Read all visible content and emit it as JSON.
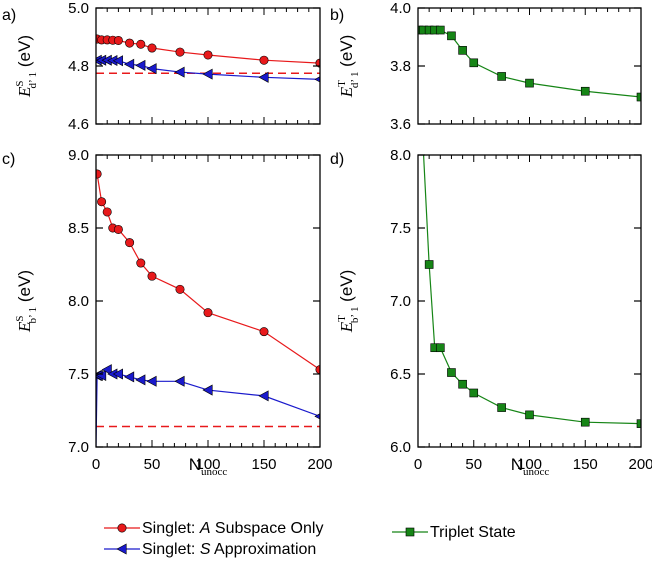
{
  "xlabel": {
    "main": "N",
    "sub": "unocc"
  },
  "legend": [
    {
      "prefix": "Singlet: ",
      "emph": "A",
      "suffix": " Subspace Only",
      "color": "#e8191b",
      "marker": "circle"
    },
    {
      "prefix": "Singlet: ",
      "emph": "S",
      "suffix": " Approximation",
      "color": "#1a1acc",
      "marker": "triangle"
    },
    {
      "prefix": "",
      "emph": "",
      "suffix": "Triplet State",
      "color": "#168516",
      "marker": "square"
    }
  ],
  "colors": {
    "red": "#e8191b",
    "blue": "#1a1acc",
    "green": "#168516",
    "dashed_red": "#e8191b"
  },
  "chart_data": [
    {
      "type": "line",
      "panel": "a)",
      "ylabel": {
        "prefix": "E",
        "sup": "S",
        "sub": "d’ 1",
        "unit": " (eV)"
      },
      "xlim": [
        0,
        200
      ],
      "ylim": [
        4.6,
        5.0
      ],
      "xticks": [],
      "yticks": [
        4.6,
        4.8,
        5.0
      ],
      "ytick_labels": [
        "4.6",
        "4.8",
        "5.0"
      ],
      "series": [
        {
          "color": "#e8191b",
          "marker": "circle",
          "x": [
            1,
            5,
            10,
            15,
            20,
            30,
            40,
            50,
            75,
            100,
            150,
            200
          ],
          "y": [
            4.893,
            4.89,
            4.89,
            4.889,
            4.888,
            4.879,
            4.875,
            4.862,
            4.848,
            4.838,
            4.82,
            4.81
          ]
        },
        {
          "color": "#1a1acc",
          "marker": "triangle",
          "x": [
            1,
            5,
            10,
            15,
            20,
            30,
            40,
            50,
            75,
            100,
            150,
            200
          ],
          "y": [
            4.82,
            4.82,
            4.82,
            4.819,
            4.818,
            4.806,
            4.802,
            4.791,
            4.779,
            4.772,
            4.761,
            4.754
          ]
        }
      ],
      "reference_lines": [
        {
          "y": 4.775,
          "color": "#e8191b",
          "style": "dashed"
        }
      ]
    },
    {
      "type": "line",
      "panel": "b)",
      "ylabel": {
        "prefix": "E",
        "sup": "T",
        "sub": "d’ 1",
        "unit": " (eV)"
      },
      "xlim": [
        0,
        200
      ],
      "ylim": [
        3.6,
        4.0
      ],
      "xticks": [],
      "yticks": [
        3.6,
        3.8,
        4.0
      ],
      "ytick_labels": [
        "3.6",
        "3.8",
        "4.0"
      ],
      "series": [
        {
          "color": "#168516",
          "marker": "square",
          "x": [
            1,
            5,
            10,
            15,
            20,
            30,
            40,
            50,
            75,
            100,
            150,
            200
          ],
          "y": [
            3.924,
            3.924,
            3.924,
            3.924,
            3.924,
            3.904,
            3.854,
            3.811,
            3.764,
            3.741,
            3.713,
            3.693
          ]
        }
      ]
    },
    {
      "type": "line",
      "panel": "c)",
      "ylabel": {
        "prefix": "E",
        "sup": "S",
        "sub": "b’ 1",
        "unit": " (eV)"
      },
      "xlim": [
        0,
        200
      ],
      "ylim": [
        7.0,
        9.0
      ],
      "xticks": [
        0,
        50,
        100,
        150,
        200
      ],
      "xtick_labels": [
        "0",
        "50",
        "100",
        "150",
        "200"
      ],
      "yticks": [
        7.0,
        7.5,
        8.0,
        8.5,
        9.0
      ],
      "ytick_labels": [
        "7.0",
        "7.5",
        "8.0",
        "8.5",
        "9.0"
      ],
      "series": [
        {
          "color": "#e8191b",
          "marker": "circle",
          "x": [
            1,
            5,
            10,
            15,
            20,
            30,
            40,
            50,
            75,
            100,
            150,
            200
          ],
          "y": [
            8.87,
            8.68,
            8.61,
            8.5,
            8.49,
            8.4,
            8.26,
            8.17,
            8.08,
            7.92,
            7.79,
            7.53
          ]
        },
        {
          "color": "#1a1acc",
          "marker": "triangle",
          "x": [
            0,
            1,
            2,
            5,
            10,
            15,
            20,
            30,
            40,
            50,
            75,
            100,
            150,
            200
          ],
          "y": [
            7.0,
            7.49,
            7.49,
            7.49,
            7.53,
            7.5,
            7.5,
            7.48,
            7.46,
            7.45,
            7.45,
            7.39,
            7.35,
            7.21
          ]
        }
      ],
      "reference_lines": [
        {
          "y": 7.14,
          "color": "#e8191b",
          "style": "dashed"
        }
      ]
    },
    {
      "type": "line",
      "panel": "d)",
      "ylabel": {
        "prefix": "E",
        "sup": "T",
        "sub": "b’ 1",
        "unit": " (eV)"
      },
      "xlim": [
        0,
        200
      ],
      "ylim": [
        6.0,
        8.0
      ],
      "xticks": [
        0,
        50,
        100,
        150,
        200
      ],
      "xtick_labels": [
        "0",
        "50",
        "100",
        "150",
        "200"
      ],
      "yticks": [
        6.0,
        6.5,
        7.0,
        7.5,
        8.0
      ],
      "ytick_labels": [
        "6.0",
        "6.5",
        "7.0",
        "7.5",
        "8.0"
      ],
      "series": [
        {
          "color": "#168516",
          "marker": "square",
          "x": [
            5,
            10,
            15,
            20,
            30,
            40,
            50,
            75,
            100,
            150,
            200
          ],
          "y": [
            8.0,
            7.25,
            6.68,
            6.68,
            6.51,
            6.43,
            6.37,
            6.27,
            6.22,
            6.17,
            6.16
          ]
        }
      ]
    }
  ]
}
